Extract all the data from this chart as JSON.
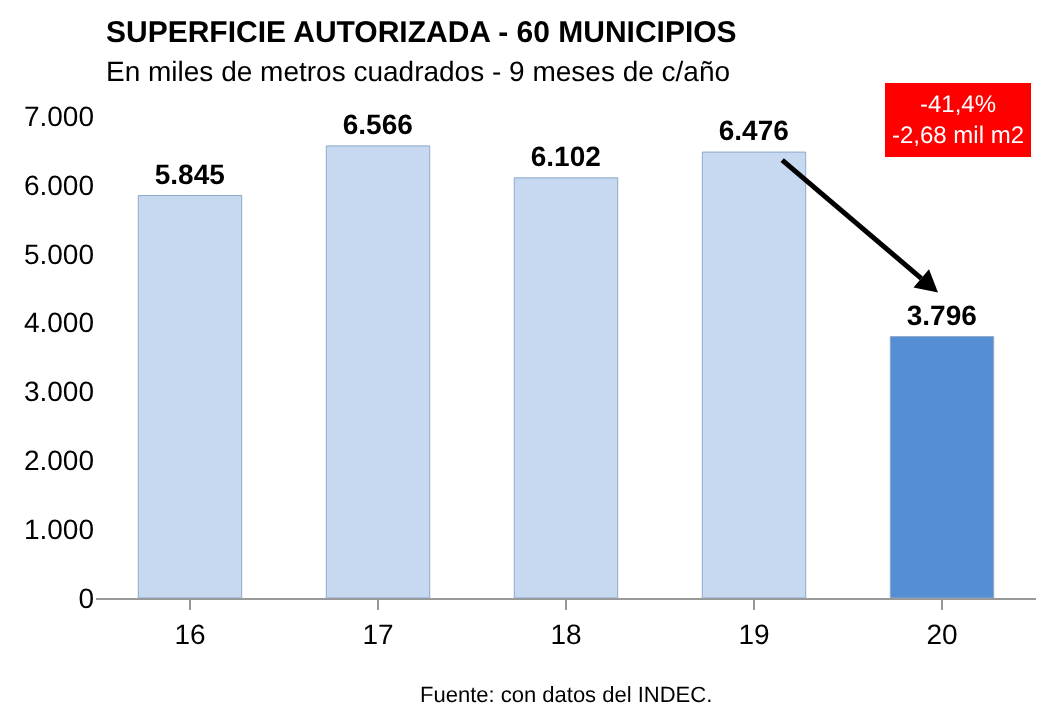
{
  "chart_data": {
    "type": "bar",
    "title": "SUPERFICIE AUTORIZADA - 60 MUNICIPIOS",
    "subtitle": "En miles de metros cuadrados - 9 meses de c/año",
    "categories": [
      "16",
      "17",
      "18",
      "19",
      "20"
    ],
    "values": [
      5845,
      6566,
      6102,
      6476,
      3796
    ],
    "colors": [
      "#c6d9f1",
      "#c6d9f1",
      "#c6d9f1",
      "#c6d9f1",
      "#558ed5"
    ],
    "ylim": [
      0,
      7000
    ],
    "yticks": [
      {
        "value": 0,
        "label": "0"
      },
      {
        "value": 1000,
        "label": "1.000"
      },
      {
        "value": 2000,
        "label": "2.000"
      },
      {
        "value": 3000,
        "label": "3.000"
      },
      {
        "value": 4000,
        "label": "4.000"
      },
      {
        "value": 5000,
        "label": "5.000"
      },
      {
        "value": 6000,
        "label": "6.000"
      },
      {
        "value": 7000,
        "label": "7.000"
      }
    ],
    "value_labels": [
      "5.845",
      "6.566",
      "6.102",
      "6.476",
      "3.796"
    ],
    "grid": false,
    "legend": false,
    "annotations": [
      "-41,4%\n-2,68 mil m2",
      "Fuente: con datos del INDEC."
    ]
  }
}
